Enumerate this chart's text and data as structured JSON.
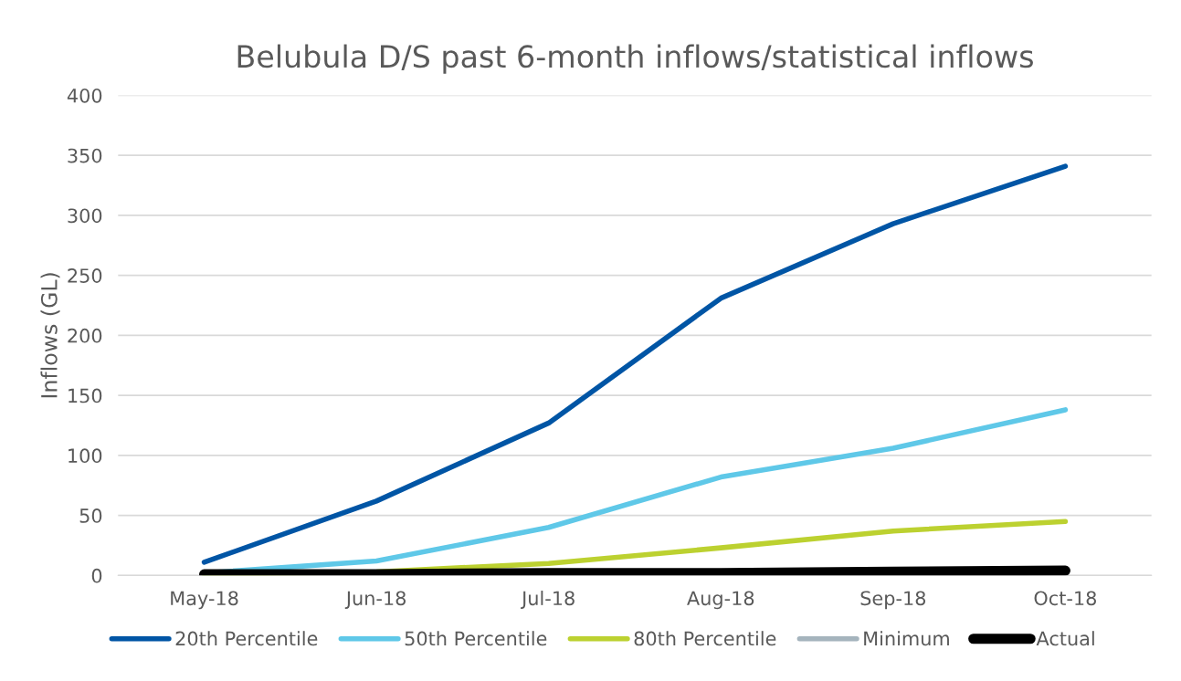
{
  "chart_data": {
    "type": "line",
    "title": "Belubula D/S past 6-month inflows/statistical inflows",
    "ylabel": "Inflows (GL)",
    "categories": [
      "May-18",
      "Jun-18",
      "Jul-18",
      "Aug-18",
      "Sep-18",
      "Oct-18"
    ],
    "series": [
      {
        "name": "20th Percentile",
        "color": "#0055a5",
        "values": [
          11,
          62,
          127,
          231,
          293,
          341
        ]
      },
      {
        "name": "50th Percentile",
        "color": "#5fc8e8",
        "values": [
          2,
          12,
          40,
          82,
          106,
          138
        ]
      },
      {
        "name": "80th Percentile",
        "color": "#bcd130",
        "values": [
          1,
          3,
          10,
          23,
          37,
          45
        ]
      },
      {
        "name": "Minimum",
        "color": "#a5b4bd",
        "values": [
          null,
          null,
          null,
          null,
          null,
          null
        ]
      },
      {
        "name": "Actual",
        "color": "#000000",
        "values": [
          1,
          1,
          2,
          2,
          3,
          4
        ]
      }
    ],
    "ylim": [
      0,
      400
    ],
    "yticks": [
      0,
      50,
      100,
      150,
      200,
      250,
      300,
      350,
      400
    ],
    "grid": "y",
    "legend": "bottom",
    "marker": "none",
    "line_style": "solid"
  }
}
